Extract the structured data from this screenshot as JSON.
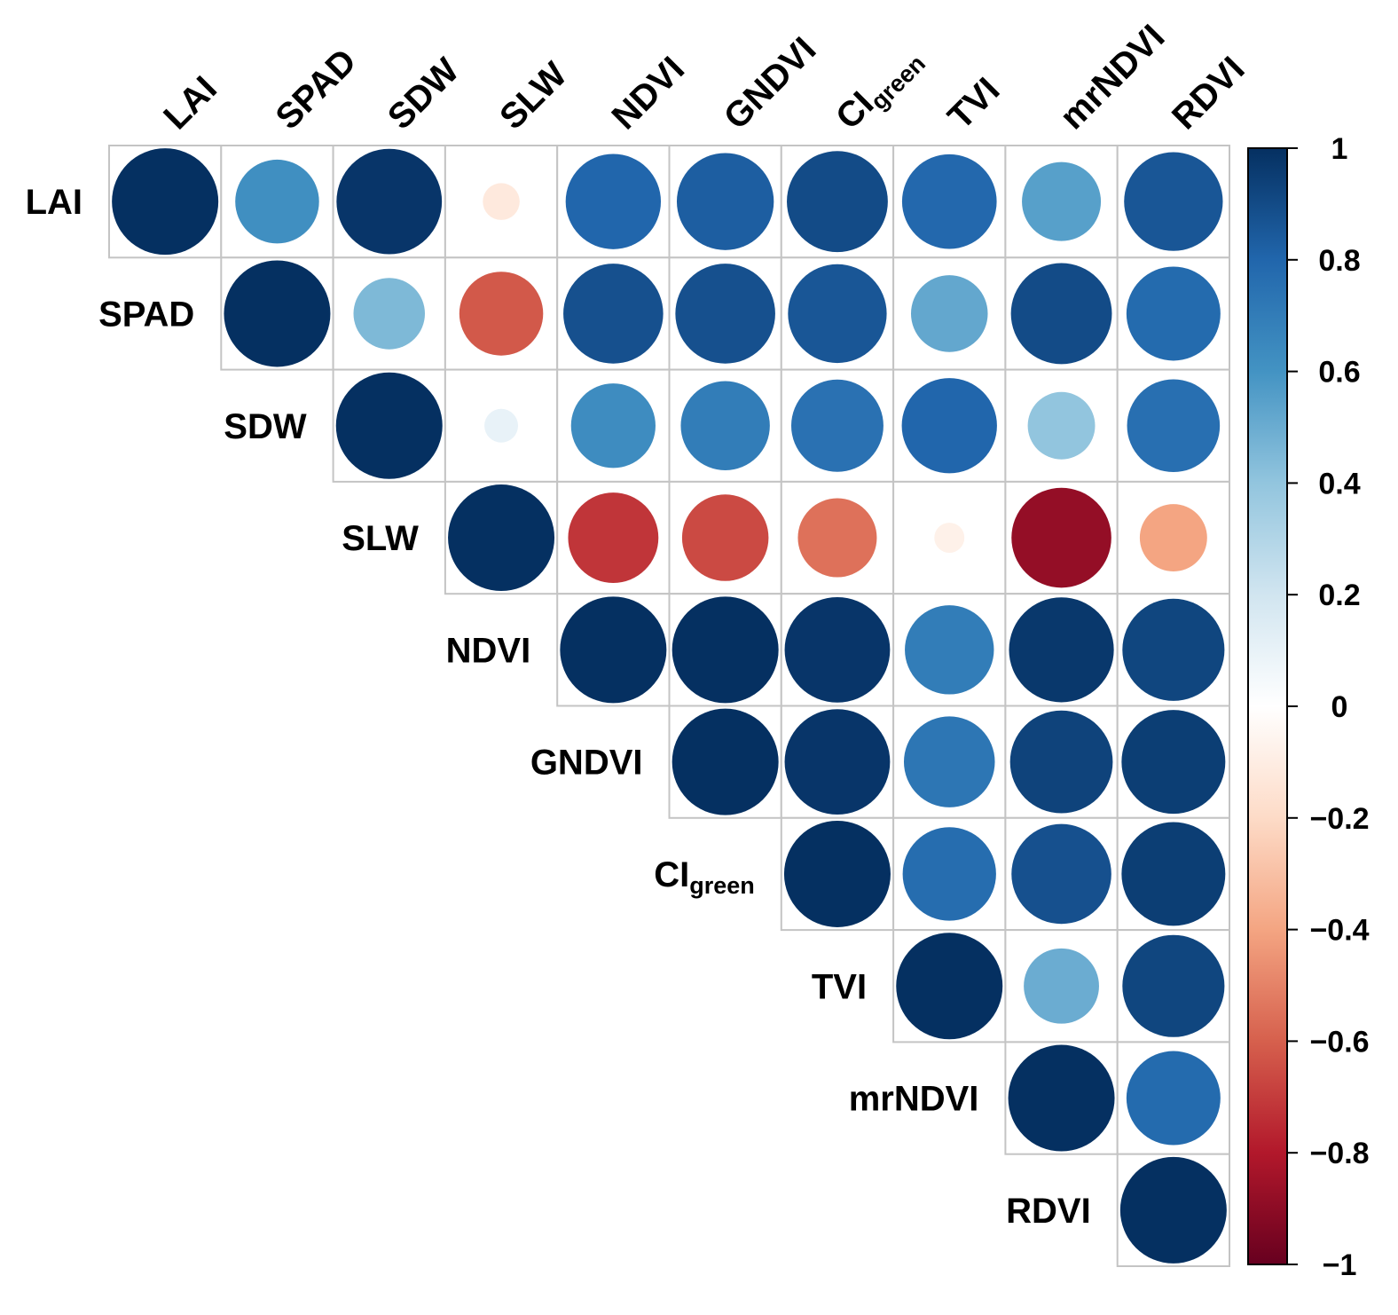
{
  "chart_data": {
    "type": "heatmap",
    "style": "correlation-upper-triangle-circles",
    "variables": [
      {
        "main": "LAI",
        "sub": ""
      },
      {
        "main": "SPAD",
        "sub": ""
      },
      {
        "main": "SDW",
        "sub": ""
      },
      {
        "main": "SLW",
        "sub": ""
      },
      {
        "main": "NDVI",
        "sub": ""
      },
      {
        "main": "GNDVI",
        "sub": ""
      },
      {
        "main": "CI",
        "sub": "green"
      },
      {
        "main": "TVI",
        "sub": ""
      },
      {
        "main": "mrNDVI",
        "sub": ""
      },
      {
        "main": "RDVI",
        "sub": ""
      }
    ],
    "matrix": [
      [
        1.0,
        0.62,
        0.98,
        -0.12,
        0.8,
        0.83,
        0.9,
        0.79,
        0.55,
        0.86
      ],
      [
        null,
        1.0,
        0.45,
        -0.62,
        0.88,
        0.88,
        0.86,
        0.52,
        0.9,
        0.78
      ],
      [
        null,
        null,
        1.0,
        0.1,
        0.63,
        0.7,
        0.75,
        0.8,
        0.4,
        0.76
      ],
      [
        null,
        null,
        null,
        1.0,
        -0.72,
        -0.66,
        -0.55,
        -0.08,
        -0.88,
        -0.4
      ],
      [
        null,
        null,
        null,
        null,
        1.0,
        1.0,
        0.98,
        0.7,
        0.97,
        0.92
      ],
      [
        null,
        null,
        null,
        null,
        null,
        1.0,
        0.98,
        0.73,
        0.93,
        0.95
      ],
      [
        null,
        null,
        null,
        null,
        null,
        null,
        1.0,
        0.77,
        0.88,
        0.95
      ],
      [
        null,
        null,
        null,
        null,
        null,
        null,
        null,
        1.0,
        0.5,
        0.92
      ],
      [
        null,
        null,
        null,
        null,
        null,
        null,
        null,
        null,
        1.0,
        0.78
      ],
      [
        null,
        null,
        null,
        null,
        null,
        null,
        null,
        null,
        null,
        1.0
      ]
    ],
    "colorbar": {
      "range": [
        -1,
        1
      ],
      "ticks": [
        "1",
        "0.8",
        "0.6",
        "0.4",
        "0.2",
        "0",
        "−0.2",
        "−0.4",
        "−0.6",
        "−0.8",
        "−1"
      ],
      "tick_values": [
        1,
        0.8,
        0.6,
        0.4,
        0.2,
        0,
        -0.2,
        -0.4,
        -0.6,
        -0.8,
        -1
      ],
      "colors": [
        "#67001f",
        "#b2182b",
        "#d6604d",
        "#f4a582",
        "#fddbc7",
        "#ffffff",
        "#d1e5f0",
        "#92c5de",
        "#4393c3",
        "#2166ac",
        "#053061"
      ]
    }
  }
}
